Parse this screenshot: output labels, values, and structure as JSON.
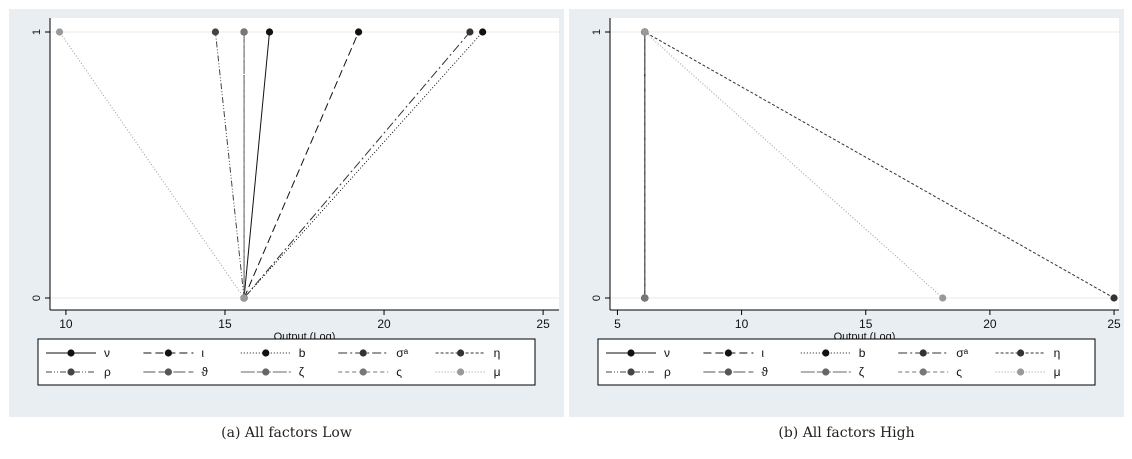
{
  "legend_labels": [
    "ν",
    "ι",
    "b",
    "σᵃ",
    "η",
    "ρ",
    "ϑ",
    "ζ",
    "ς",
    "μ"
  ],
  "series_styles": [
    {
      "color": "#111111",
      "dash": ""
    },
    {
      "color": "#111111",
      "dash": "8,4"
    },
    {
      "color": "#111111",
      "dash": "1,2"
    },
    {
      "color": "#333333",
      "dash": "9,3,2,3"
    },
    {
      "color": "#333333",
      "dash": "3,2"
    },
    {
      "color": "#444444",
      "dash": "6,2,1,2,1,2"
    },
    {
      "color": "#555555",
      "dash": "12,3"
    },
    {
      "color": "#666666",
      "dash": "14,2"
    },
    {
      "color": "#777777",
      "dash": "4,3"
    },
    {
      "color": "#999999",
      "dash": "1,2"
    }
  ],
  "chart_data": [
    {
      "type": "line",
      "caption": "(a) All factors Low",
      "xlabel": "Output (Log)",
      "ylabel": "",
      "xlim": [
        9.5,
        25.5
      ],
      "ylim": [
        0,
        1
      ],
      "xticks": [
        "10",
        "15",
        "20",
        "25"
      ],
      "yticks": [
        "0",
        "1"
      ],
      "grid": true,
      "legend_position": "bottom",
      "series": [
        {
          "name": "ν",
          "points": [
            [
              15.6,
              0
            ],
            [
              16.4,
              1
            ]
          ]
        },
        {
          "name": "ι",
          "points": [
            [
              15.6,
              0
            ],
            [
              19.2,
              1
            ]
          ]
        },
        {
          "name": "b",
          "points": [
            [
              15.6,
              0
            ],
            [
              23.1,
              1
            ]
          ]
        },
        {
          "name": "σᵃ",
          "points": [
            [
              15.6,
              0
            ],
            [
              22.7,
              1
            ]
          ]
        },
        {
          "name": "η",
          "points": [
            [
              15.6,
              0
            ],
            [
              15.6,
              1
            ]
          ]
        },
        {
          "name": "ρ",
          "points": [
            [
              15.6,
              0
            ],
            [
              14.7,
              1
            ]
          ]
        },
        {
          "name": "ϑ",
          "points": [
            [
              15.6,
              0
            ],
            [
              15.6,
              1
            ]
          ]
        },
        {
          "name": "ζ",
          "points": [
            [
              15.6,
              0
            ],
            [
              15.6,
              1
            ]
          ]
        },
        {
          "name": "ς",
          "points": [
            [
              15.6,
              0
            ],
            [
              15.6,
              1
            ]
          ]
        },
        {
          "name": "μ",
          "points": [
            [
              15.6,
              0
            ],
            [
              9.8,
              1
            ]
          ]
        }
      ]
    },
    {
      "type": "line",
      "caption": "(b) All factors High",
      "xlabel": "Output (Log)",
      "ylabel": "",
      "xlim": [
        4.7,
        25.2
      ],
      "ylim": [
        0,
        1
      ],
      "xticks": [
        "5",
        "10",
        "15",
        "20",
        "25"
      ],
      "yticks": [
        "0",
        "1"
      ],
      "grid": true,
      "legend_position": "bottom",
      "series": [
        {
          "name": "ν",
          "points": [
            [
              6.1,
              0
            ],
            [
              6.1,
              1
            ]
          ]
        },
        {
          "name": "ι",
          "points": [
            [
              6.1,
              0
            ],
            [
              6.1,
              1
            ]
          ]
        },
        {
          "name": "b",
          "points": [
            [
              6.1,
              0
            ],
            [
              6.1,
              1
            ]
          ]
        },
        {
          "name": "σᵃ",
          "points": [
            [
              6.1,
              0
            ],
            [
              6.1,
              1
            ]
          ]
        },
        {
          "name": "η",
          "points": [
            [
              25.0,
              0
            ],
            [
              6.1,
              1
            ]
          ]
        },
        {
          "name": "ρ",
          "points": [
            [
              6.1,
              0
            ],
            [
              6.1,
              1
            ]
          ]
        },
        {
          "name": "ϑ",
          "points": [
            [
              6.1,
              0
            ],
            [
              6.1,
              1
            ]
          ]
        },
        {
          "name": "ζ",
          "points": [
            [
              6.1,
              0
            ],
            [
              6.1,
              1
            ]
          ]
        },
        {
          "name": "ς",
          "points": [
            [
              6.1,
              0
            ],
            [
              6.1,
              1
            ]
          ]
        },
        {
          "name": "μ",
          "points": [
            [
              18.1,
              0
            ],
            [
              6.1,
              1
            ]
          ]
        }
      ]
    }
  ]
}
